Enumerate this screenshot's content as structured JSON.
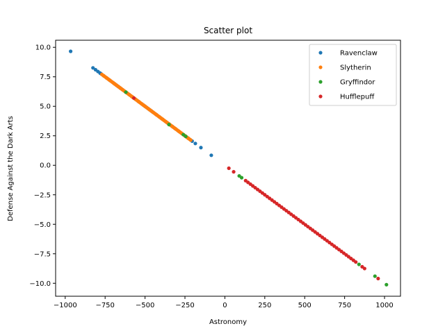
{
  "chart_data": {
    "type": "scatter",
    "title": "Scatter plot",
    "xlabel": "Astronomy",
    "ylabel": "Defense Against the Dark Arts",
    "xlim": [
      -1060,
      1100
    ],
    "ylim": [
      -11.1,
      10.6
    ],
    "xticks": [
      -1000,
      -750,
      -500,
      -250,
      0,
      250,
      500,
      750,
      1000
    ],
    "xtick_labels": [
      "−1000",
      "−750",
      "−500",
      "−250",
      "0",
      "250",
      "500",
      "750",
      "1000"
    ],
    "yticks": [
      -10.0,
      -7.5,
      -5.0,
      -2.5,
      0.0,
      2.5,
      5.0,
      7.5,
      10.0
    ],
    "ytick_labels": [
      "−10.0",
      "−7.5",
      "−5.0",
      "−2.5",
      "0.0",
      "2.5",
      "5.0",
      "7.5",
      "10.0"
    ],
    "grid": false,
    "legend_position": "top-right",
    "series": [
      {
        "name": "Ravenclaw",
        "color": "#1f77b4",
        "points": [
          [
            -966,
            9.66
          ],
          [
            -826,
            8.26
          ],
          [
            -810,
            8.1
          ],
          [
            -795,
            7.95
          ],
          [
            -782,
            7.82
          ],
          [
            -775,
            7.75
          ],
          [
            -760,
            7.6
          ],
          [
            -740,
            7.4
          ],
          [
            -720,
            7.2
          ],
          [
            -700,
            7.0
          ],
          [
            -690,
            6.9
          ],
          [
            -680,
            6.8
          ],
          [
            -670,
            6.7
          ],
          [
            -665,
            6.65
          ],
          [
            -655,
            6.55
          ],
          [
            -640,
            6.4
          ],
          [
            -620,
            6.2
          ],
          [
            -600,
            6.0
          ],
          [
            -580,
            5.8
          ],
          [
            -560,
            5.6
          ],
          [
            -540,
            5.4
          ],
          [
            -520,
            5.2
          ],
          [
            -510,
            5.1
          ],
          [
            -500,
            5.0
          ],
          [
            -490,
            4.9
          ],
          [
            -480,
            4.8
          ],
          [
            -470,
            4.7
          ],
          [
            -460,
            4.6
          ],
          [
            -450,
            4.5
          ],
          [
            -430,
            4.3
          ],
          [
            -410,
            4.1
          ],
          [
            -390,
            3.9
          ],
          [
            -370,
            3.7
          ],
          [
            -350,
            3.5
          ],
          [
            -330,
            3.3
          ],
          [
            -310,
            3.1
          ],
          [
            -290,
            2.9
          ],
          [
            -270,
            2.7
          ],
          [
            -250,
            2.5
          ],
          [
            -230,
            2.3
          ],
          [
            -215,
            2.15
          ],
          [
            -205,
            2.05
          ],
          [
            -185,
            1.85
          ],
          [
            -150,
            1.5
          ],
          [
            -85,
            0.85
          ]
        ]
      },
      {
        "name": "Slytherin",
        "color": "#ff7f0e",
        "points": [
          [
            -770,
            7.7
          ],
          [
            -762,
            7.62
          ],
          [
            -755,
            7.55
          ],
          [
            -748,
            7.48
          ],
          [
            -742,
            7.42
          ],
          [
            -736,
            7.36
          ],
          [
            -730,
            7.3
          ],
          [
            -724,
            7.24
          ],
          [
            -718,
            7.18
          ],
          [
            -712,
            7.12
          ],
          [
            -706,
            7.06
          ],
          [
            -700,
            7.0
          ],
          [
            -694,
            6.94
          ],
          [
            -688,
            6.88
          ],
          [
            -682,
            6.82
          ],
          [
            -676,
            6.76
          ],
          [
            -670,
            6.7
          ],
          [
            -664,
            6.64
          ],
          [
            -658,
            6.58
          ],
          [
            -652,
            6.52
          ],
          [
            -646,
            6.46
          ],
          [
            -640,
            6.4
          ],
          [
            -634,
            6.34
          ],
          [
            -628,
            6.28
          ],
          [
            -622,
            6.22
          ],
          [
            -616,
            6.16
          ],
          [
            -610,
            6.1
          ],
          [
            -604,
            6.04
          ],
          [
            -598,
            5.98
          ],
          [
            -592,
            5.92
          ],
          [
            -586,
            5.86
          ],
          [
            -580,
            5.8
          ],
          [
            -574,
            5.74
          ],
          [
            -568,
            5.68
          ],
          [
            -562,
            5.62
          ],
          [
            -556,
            5.56
          ],
          [
            -550,
            5.5
          ],
          [
            -544,
            5.44
          ],
          [
            -538,
            5.38
          ],
          [
            -532,
            5.32
          ],
          [
            -526,
            5.26
          ],
          [
            -520,
            5.2
          ],
          [
            -514,
            5.14
          ],
          [
            -508,
            5.08
          ],
          [
            -502,
            5.02
          ],
          [
            -496,
            4.96
          ],
          [
            -490,
            4.9
          ],
          [
            -484,
            4.84
          ],
          [
            -478,
            4.78
          ],
          [
            -472,
            4.72
          ],
          [
            -466,
            4.66
          ],
          [
            -460,
            4.6
          ],
          [
            -454,
            4.54
          ],
          [
            -448,
            4.48
          ],
          [
            -442,
            4.42
          ],
          [
            -436,
            4.36
          ],
          [
            -430,
            4.3
          ],
          [
            -424,
            4.24
          ],
          [
            -418,
            4.18
          ],
          [
            -412,
            4.12
          ],
          [
            -406,
            4.06
          ],
          [
            -400,
            4.0
          ],
          [
            -394,
            3.94
          ],
          [
            -388,
            3.88
          ],
          [
            -382,
            3.82
          ],
          [
            -376,
            3.76
          ],
          [
            -370,
            3.7
          ],
          [
            -364,
            3.64
          ],
          [
            -358,
            3.58
          ],
          [
            -352,
            3.52
          ],
          [
            -346,
            3.46
          ],
          [
            -340,
            3.4
          ],
          [
            -334,
            3.34
          ],
          [
            -328,
            3.28
          ],
          [
            -322,
            3.22
          ],
          [
            -316,
            3.16
          ],
          [
            -310,
            3.1
          ],
          [
            -304,
            3.04
          ],
          [
            -298,
            2.98
          ],
          [
            -292,
            2.92
          ],
          [
            -286,
            2.86
          ],
          [
            -280,
            2.8
          ],
          [
            -274,
            2.74
          ],
          [
            -268,
            2.68
          ],
          [
            -262,
            2.62
          ],
          [
            -256,
            2.56
          ],
          [
            -250,
            2.5
          ],
          [
            -244,
            2.44
          ],
          [
            -238,
            2.38
          ],
          [
            -232,
            2.32
          ],
          [
            -226,
            2.26
          ],
          [
            -220,
            2.2
          ],
          [
            -214,
            2.14
          ]
        ]
      },
      {
        "name": "Gryffindor",
        "color": "#2ca02c",
        "points": [
          [
            -620,
            6.2
          ],
          [
            -350,
            3.45
          ],
          [
            -260,
            2.6
          ],
          [
            -245,
            2.45
          ],
          [
            90,
            -0.9
          ],
          [
            105,
            -1.05
          ],
          [
            840,
            -8.4
          ],
          [
            940,
            -9.4
          ],
          [
            1012,
            -10.12
          ]
        ]
      },
      {
        "name": "Hufflepuff",
        "color": "#d62728",
        "points": [
          [
            -570,
            5.7
          ],
          [
            25,
            -0.25
          ],
          [
            55,
            -0.55
          ],
          [
            130,
            -1.3
          ],
          [
            145,
            -1.45
          ],
          [
            160,
            -1.6
          ],
          [
            175,
            -1.75
          ],
          [
            190,
            -1.9
          ],
          [
            205,
            -2.05
          ],
          [
            220,
            -2.2
          ],
          [
            235,
            -2.35
          ],
          [
            250,
            -2.5
          ],
          [
            265,
            -2.65
          ],
          [
            280,
            -2.8
          ],
          [
            295,
            -2.95
          ],
          [
            310,
            -3.1
          ],
          [
            325,
            -3.25
          ],
          [
            340,
            -3.4
          ],
          [
            355,
            -3.55
          ],
          [
            370,
            -3.7
          ],
          [
            385,
            -3.85
          ],
          [
            400,
            -4.0
          ],
          [
            415,
            -4.15
          ],
          [
            430,
            -4.3
          ],
          [
            445,
            -4.45
          ],
          [
            460,
            -4.6
          ],
          [
            475,
            -4.75
          ],
          [
            490,
            -4.9
          ],
          [
            505,
            -5.05
          ],
          [
            520,
            -5.2
          ],
          [
            535,
            -5.35
          ],
          [
            550,
            -5.5
          ],
          [
            565,
            -5.65
          ],
          [
            580,
            -5.8
          ],
          [
            595,
            -5.95
          ],
          [
            610,
            -6.1
          ],
          [
            625,
            -6.25
          ],
          [
            640,
            -6.4
          ],
          [
            655,
            -6.55
          ],
          [
            670,
            -6.7
          ],
          [
            685,
            -6.85
          ],
          [
            700,
            -7.0
          ],
          [
            715,
            -7.15
          ],
          [
            730,
            -7.3
          ],
          [
            745,
            -7.45
          ],
          [
            760,
            -7.6
          ],
          [
            775,
            -7.75
          ],
          [
            790,
            -7.9
          ],
          [
            805,
            -8.05
          ],
          [
            820,
            -8.2
          ],
          [
            860,
            -8.6
          ],
          [
            875,
            -8.75
          ],
          [
            960,
            -9.6
          ]
        ]
      }
    ]
  }
}
